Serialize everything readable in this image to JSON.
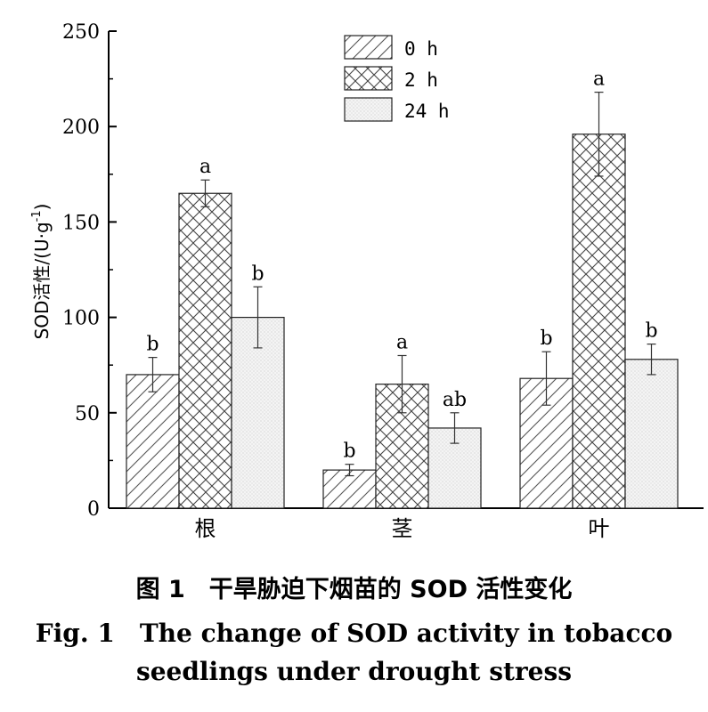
{
  "chart_data": {
    "type": "bar",
    "categories": [
      "根",
      "茎",
      "叶"
    ],
    "series": [
      {
        "name": "0 h",
        "values": [
          70,
          20,
          68
        ],
        "errors": [
          9,
          3,
          14
        ],
        "labels": [
          "b",
          "b",
          "b"
        ],
        "pattern": "diag"
      },
      {
        "name": "2 h",
        "values": [
          165,
          65,
          196
        ],
        "errors": [
          7,
          15,
          22
        ],
        "labels": [
          "a",
          "a",
          "a"
        ],
        "pattern": "cross"
      },
      {
        "name": "24 h",
        "values": [
          100,
          42,
          78
        ],
        "errors": [
          16,
          8,
          8
        ],
        "labels": [
          "b",
          "ab",
          "b"
        ],
        "pattern": "dots"
      }
    ],
    "ylabel_main": "SOD活性/(U·g",
    "ylabel_sup": "-1",
    "ylabel_close": ")",
    "ylim": [
      0,
      250
    ],
    "yticks": [
      0,
      50,
      100,
      150,
      200,
      250
    ],
    "legend_position": "top-center",
    "grid": false
  },
  "caption": {
    "cn": "图 1　干旱胁迫下烟苗的 SOD 活性变化",
    "en_line1": "Fig. 1　The change of SOD activity in tobacco",
    "en_line2": "seedlings under drought stress"
  }
}
